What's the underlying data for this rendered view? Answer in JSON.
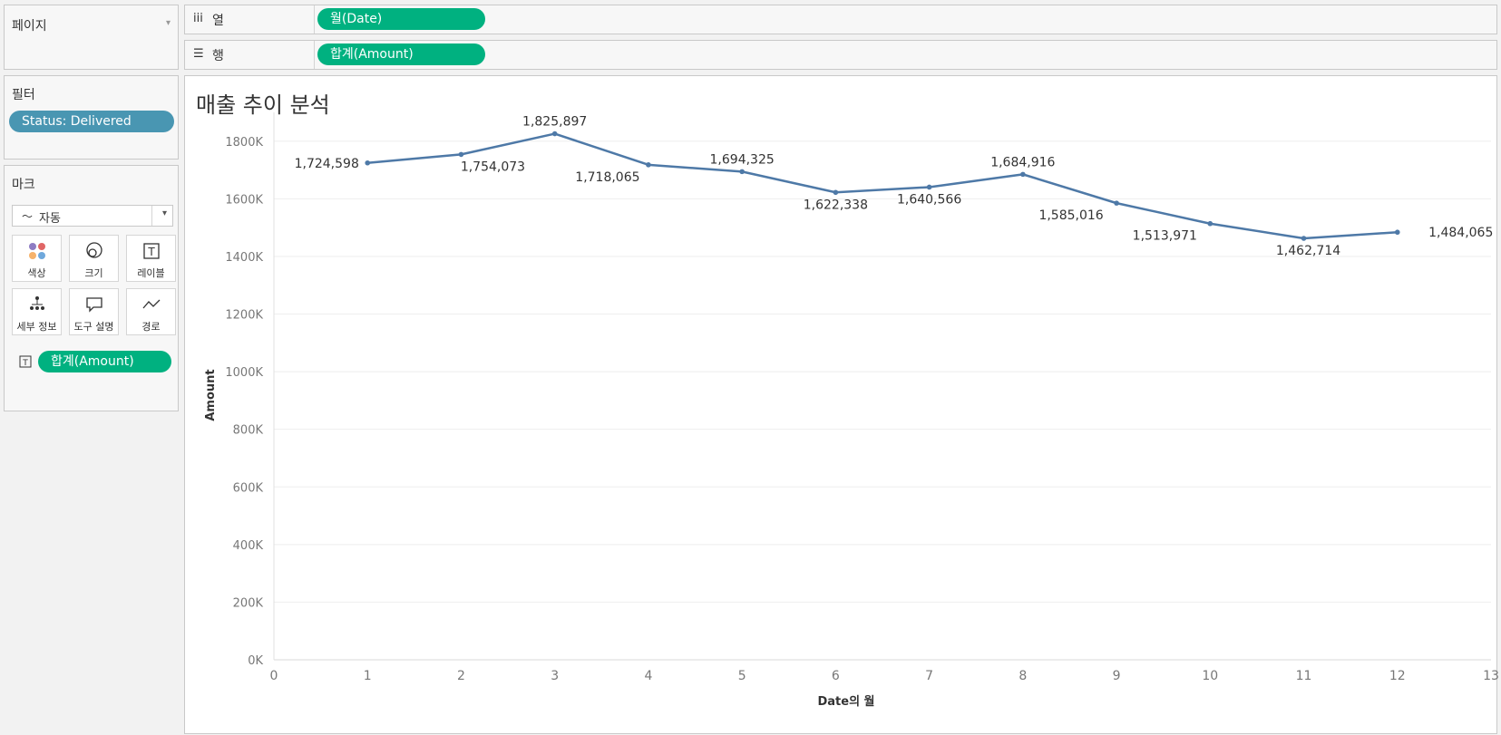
{
  "pages_panel": {
    "title": "페이지"
  },
  "columns_shelf": {
    "label": "열",
    "icon": "columns-icon",
    "pill": "월(Date)"
  },
  "rows_shelf": {
    "label": "행",
    "icon": "rows-icon",
    "pill": "합계(Amount)"
  },
  "filters_panel": {
    "title": "필터",
    "pill": "Status: Delivered"
  },
  "marks_panel": {
    "title": "마크",
    "mark_type": "자동",
    "buttons": [
      {
        "label": "색상",
        "icon": "color-icon"
      },
      {
        "label": "크기",
        "icon": "size-icon"
      },
      {
        "label": "레이블",
        "icon": "label-icon"
      },
      {
        "label": "세부 정보",
        "icon": "detail-icon"
      },
      {
        "label": "도구 설명",
        "icon": "tooltip-icon"
      },
      {
        "label": "경로",
        "icon": "path-icon"
      }
    ],
    "label_pill": "합계(Amount)"
  },
  "colors": {
    "green_pill": "#00b180",
    "blue_pill": "#4996b2",
    "line": "#4e79a7"
  },
  "chart_data": {
    "type": "line",
    "title": "매출 추이 분석",
    "xlabel": "Date의 월",
    "ylabel": "Amount",
    "x": [
      1,
      2,
      3,
      4,
      5,
      6,
      7,
      8,
      9,
      10,
      11,
      12
    ],
    "values": [
      1724598,
      1754073,
      1825897,
      1718065,
      1694325,
      1622338,
      1640566,
      1684916,
      1585016,
      1513971,
      1462714,
      1484065
    ],
    "data_labels": [
      "1,724,598",
      "1,754,073",
      "1,825,897",
      "1,718,065",
      "1,694,325",
      "1,622,338",
      "1,640,566",
      "1,684,916",
      "1,585,016",
      "1,513,971",
      "1,462,714",
      "1,484,065"
    ],
    "xlim": [
      0,
      13
    ],
    "ylim": [
      0,
      1900000
    ],
    "x_ticks": [
      "0",
      "1",
      "2",
      "3",
      "4",
      "5",
      "6",
      "7",
      "8",
      "9",
      "10",
      "11",
      "12",
      "13"
    ],
    "y_ticks": [
      "0K",
      "200K",
      "400K",
      "600K",
      "800K",
      "1000K",
      "1200K",
      "1400K",
      "1600K",
      "1800K"
    ],
    "grid": true
  }
}
